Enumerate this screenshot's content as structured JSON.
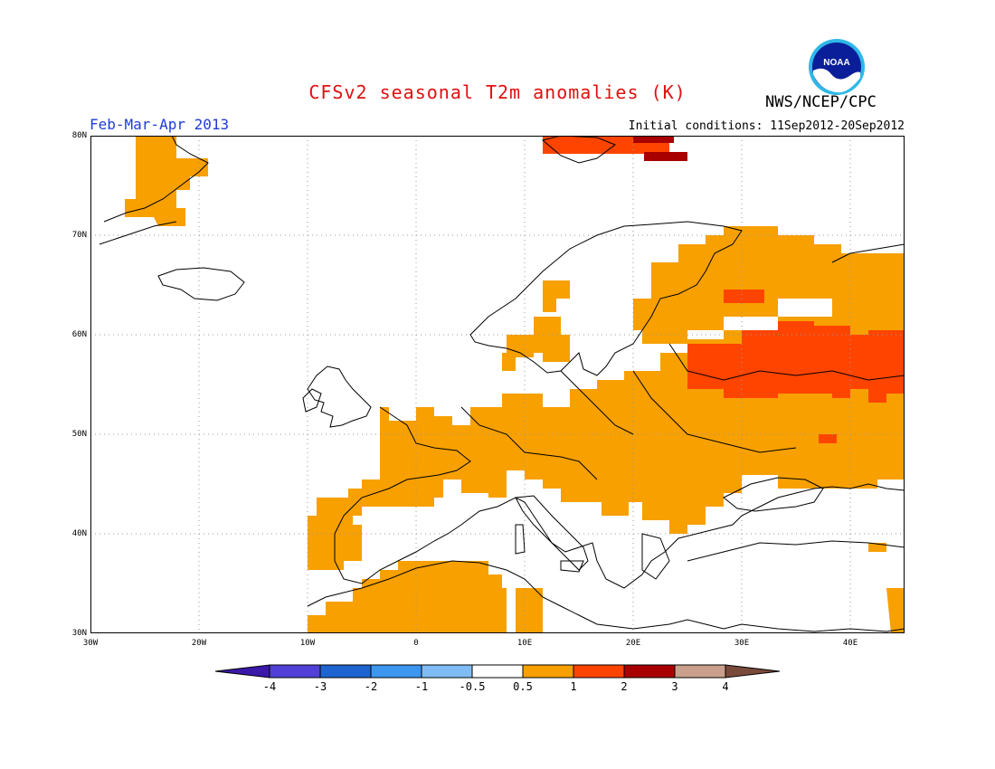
{
  "header": {
    "title": "CFSv2 seasonal T2m anomalies (K)",
    "agency": "NWS/NCEP/CPC",
    "period": "Feb-Mar-Apr 2013",
    "initial_conditions": "Initial conditions: 11Sep2012-20Sep2012",
    "logo_text": "NOAA"
  },
  "map": {
    "region": "Europe",
    "lon_range": [
      -30,
      45
    ],
    "lat_range": [
      30,
      80
    ],
    "lat_ticks": [
      "30N",
      "40N",
      "50N",
      "60N",
      "70N",
      "80N"
    ],
    "lon_ticks": [
      "30W",
      "20W",
      "10W",
      "0",
      "10E",
      "20E",
      "30E",
      "40E"
    ],
    "colors": {
      "anom_0_5_to_1": "#f7a000",
      "anom_1_to_2": "#ff4400",
      "anom_2_to_3": "#a80000",
      "land_outline": "#000000",
      "grid": "#888888"
    }
  },
  "colorbar": {
    "labels": [
      "-4",
      "-3",
      "-2",
      "-1",
      "-0.5",
      "0.5",
      "1",
      "2",
      "3",
      "4"
    ],
    "colors": [
      "#3a18a8",
      "#5040d8",
      "#1e64d0",
      "#3c96f0",
      "#7fbcf6",
      "#ffffff",
      "#f7a000",
      "#ff4400",
      "#a80000",
      "#caa08c",
      "#7a4a3a"
    ]
  }
}
